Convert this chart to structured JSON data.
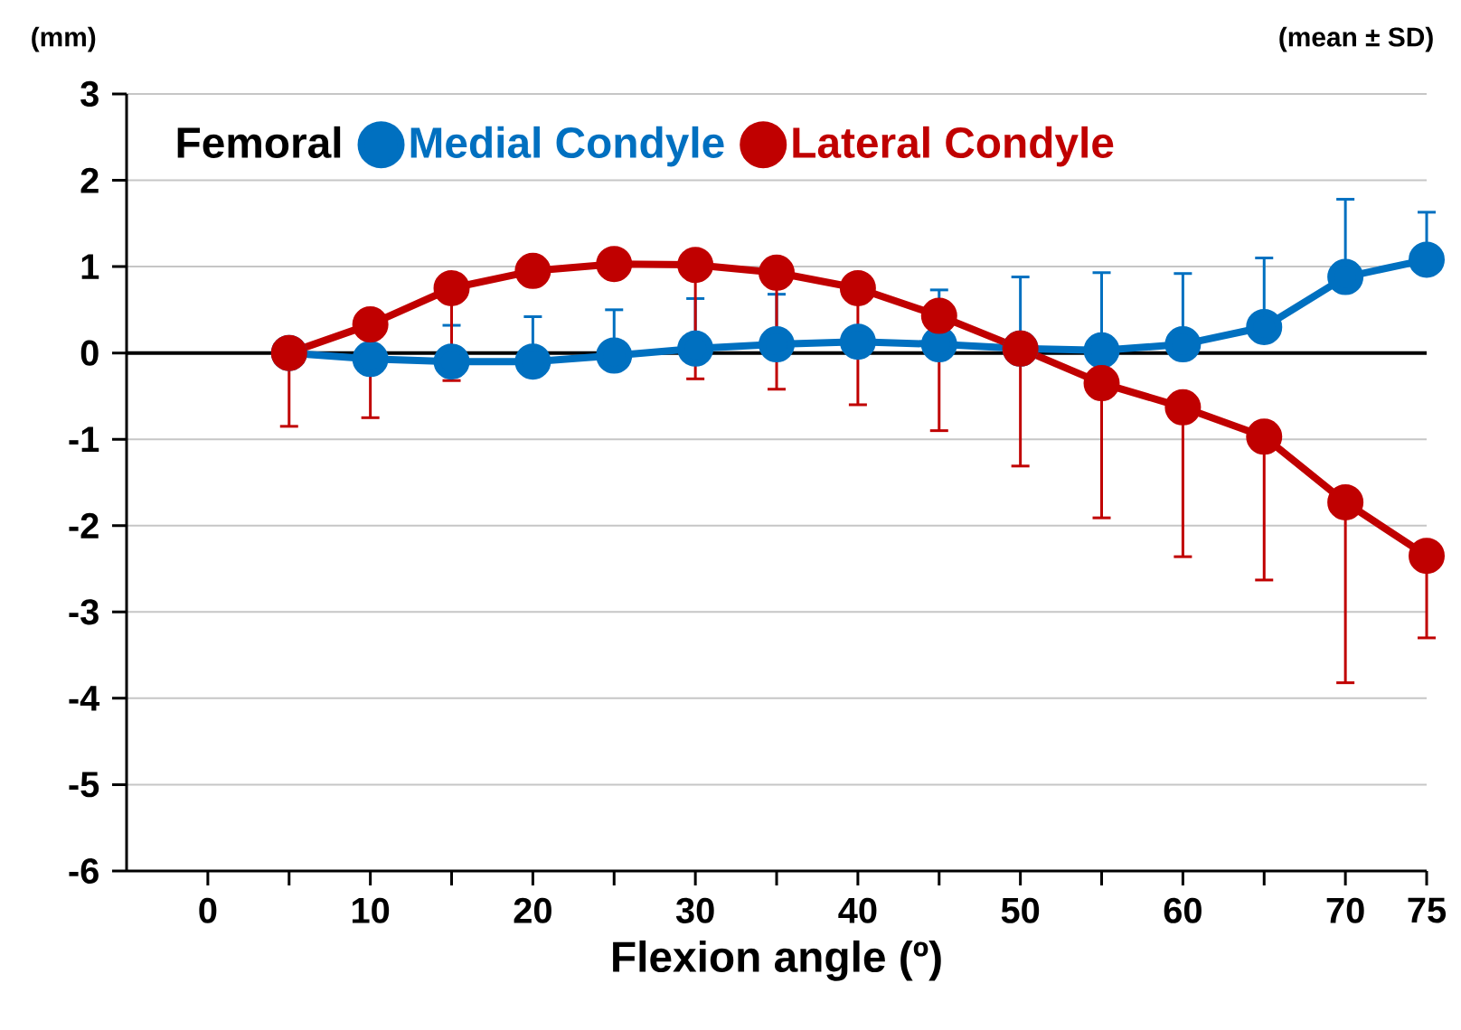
{
  "chart_data": {
    "type": "line",
    "xlabel": "Flexion angle (º)",
    "legend_title": "Femoral",
    "annotations": [
      "(mm)",
      "(mean ± SD)"
    ],
    "x": [
      5,
      10,
      15,
      20,
      25,
      30,
      35,
      40,
      45,
      50,
      55,
      60,
      65,
      70,
      75
    ],
    "series": [
      {
        "name": "Medial Condyle",
        "color": "#0070c0",
        "values": [
          0,
          -0.07,
          -0.1,
          -0.1,
          -0.03,
          0.05,
          0.1,
          0.13,
          0.1,
          0.05,
          0.03,
          0.1,
          0.3,
          0.88,
          1.08
        ],
        "errors": [
          null,
          null,
          [
            -0.1,
            0.32
          ],
          [
            -0.1,
            0.42
          ],
          [
            -0.03,
            0.5
          ],
          [
            0.05,
            0.63
          ],
          [
            0.1,
            0.68
          ],
          null,
          [
            0.1,
            0.73
          ],
          [
            0.05,
            0.88
          ],
          [
            0.03,
            0.93
          ],
          [
            0.1,
            0.92
          ],
          [
            0.3,
            1.1
          ],
          [
            0.88,
            1.78
          ],
          [
            1.08,
            1.63
          ]
        ]
      },
      {
        "name": "Lateral Condyle",
        "color": "#c00000",
        "values": [
          0,
          0.33,
          0.75,
          0.95,
          1.03,
          1.02,
          0.93,
          0.75,
          0.43,
          0.05,
          -0.35,
          -0.63,
          -0.97,
          -1.73,
          -2.35
        ],
        "errors": [
          [
            -0.85,
            0
          ],
          [
            -0.75,
            0.33
          ],
          [
            -0.32,
            0.75
          ],
          null,
          null,
          [
            -0.3,
            1.02
          ],
          [
            -0.42,
            0.93
          ],
          [
            -0.6,
            0.75
          ],
          [
            -0.9,
            0.43
          ],
          [
            -1.31,
            0.05
          ],
          [
            -1.91,
            -0.35
          ],
          [
            -2.36,
            -0.63
          ],
          [
            -2.63,
            -0.97
          ],
          [
            -3.82,
            -1.73
          ],
          [
            -3.3,
            -2.35
          ]
        ]
      }
    ],
    "xlim": [
      -5,
      75
    ],
    "xticks": [
      0,
      {
        "value": 5,
        "label": null
      },
      10,
      {
        "value": 15,
        "label": null
      },
      20,
      {
        "value": 25,
        "label": null
      },
      30,
      {
        "value": 35,
        "label": null
      },
      40,
      {
        "value": 45,
        "label": null
      },
      50,
      {
        "value": 55,
        "label": null
      },
      60,
      {
        "value": 65,
        "label": null
      },
      70,
      75
    ],
    "ylim": [
      -6,
      3
    ],
    "yticks": [
      -6,
      -5,
      -4,
      -3,
      -2,
      -1,
      0,
      1,
      2,
      3
    ],
    "ref_lines": [
      {
        "axis": "y",
        "value": 0,
        "color": "#000000"
      }
    ],
    "grid": "y",
    "legend": "top left",
    "marker": "circle",
    "line_style": "solid"
  }
}
